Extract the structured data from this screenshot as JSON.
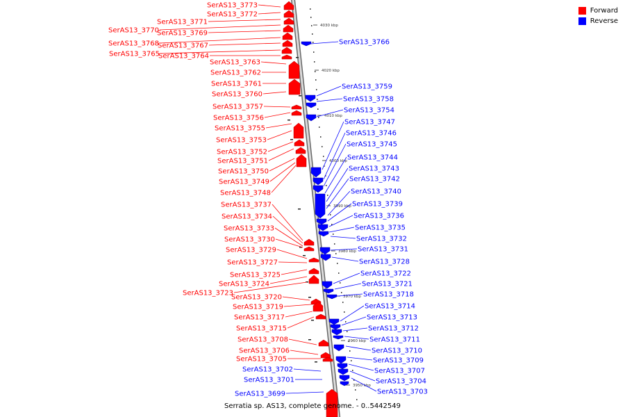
{
  "colors": {
    "forward": "#ff0000",
    "reverse": "#0000ff",
    "axis": "#9a9a9a"
  },
  "legend": {
    "forward_label": "Forward",
    "reverse_label": "Reverse"
  },
  "caption": "Serratia sp. AS13, complete genome. - 0..5442549",
  "ticks": [
    "4030 kbp",
    "4020 kbp",
    "4010 kbp",
    "4000 kbp",
    "3990 kbp",
    "3980 kbp",
    "3970 kbp",
    "3960 kbp",
    "3950 kbp"
  ],
  "genes": [
    {
      "name": "SerAS13_3773",
      "strand": "forward"
    },
    {
      "name": "SerAS13_3772",
      "strand": "forward"
    },
    {
      "name": "SerAS13_3771",
      "strand": "forward"
    },
    {
      "name": "SerAS13_3770",
      "strand": "forward"
    },
    {
      "name": "SerAS13_3769",
      "strand": "forward"
    },
    {
      "name": "SerAS13_3768",
      "strand": "forward"
    },
    {
      "name": "SerAS13_3767",
      "strand": "forward"
    },
    {
      "name": "SerAS13_3765",
      "strand": "forward"
    },
    {
      "name": "SerAS13_3764",
      "strand": "forward"
    },
    {
      "name": "SerAS13_3763",
      "strand": "forward"
    },
    {
      "name": "SerAS13_3762",
      "strand": "forward"
    },
    {
      "name": "SerAS13_3761",
      "strand": "forward"
    },
    {
      "name": "SerAS13_3760",
      "strand": "forward"
    },
    {
      "name": "SerAS13_3757",
      "strand": "forward"
    },
    {
      "name": "SerAS13_3756",
      "strand": "forward"
    },
    {
      "name": "SerAS13_3755",
      "strand": "forward"
    },
    {
      "name": "SerAS13_3753",
      "strand": "forward"
    },
    {
      "name": "SerAS13_3752",
      "strand": "forward"
    },
    {
      "name": "SerAS13_3751",
      "strand": "forward"
    },
    {
      "name": "SerAS13_3750",
      "strand": "forward"
    },
    {
      "name": "SerAS13_3749",
      "strand": "forward"
    },
    {
      "name": "SerAS13_3748",
      "strand": "forward"
    },
    {
      "name": "SerAS13_3737",
      "strand": "forward"
    },
    {
      "name": "SerAS13_3734",
      "strand": "forward"
    },
    {
      "name": "SerAS13_3733",
      "strand": "forward"
    },
    {
      "name": "SerAS13_3730",
      "strand": "forward"
    },
    {
      "name": "SerAS13_3729",
      "strand": "forward"
    },
    {
      "name": "SerAS13_3727",
      "strand": "forward"
    },
    {
      "name": "SerAS13_3725",
      "strand": "forward"
    },
    {
      "name": "SerAS13_3724",
      "strand": "forward"
    },
    {
      "name": "SerAS13_3723",
      "strand": "forward"
    },
    {
      "name": "SerAS13_3720",
      "strand": "forward"
    },
    {
      "name": "SerAS13_3719",
      "strand": "forward"
    },
    {
      "name": "SerAS13_3717",
      "strand": "forward"
    },
    {
      "name": "SerAS13_3715",
      "strand": "forward"
    },
    {
      "name": "SerAS13_3708",
      "strand": "forward"
    },
    {
      "name": "SerAS13_3706",
      "strand": "forward"
    },
    {
      "name": "SerAS13_3705",
      "strand": "forward"
    },
    {
      "name": "SerAS13_3702",
      "strand": "reverse"
    },
    {
      "name": "SerAS13_3701",
      "strand": "reverse"
    },
    {
      "name": "SerAS13_3699",
      "strand": "reverse"
    },
    {
      "name": "SerAS13_3766",
      "strand": "reverse"
    },
    {
      "name": "SerAS13_3759",
      "strand": "reverse"
    },
    {
      "name": "SerAS13_3758",
      "strand": "reverse"
    },
    {
      "name": "SerAS13_3754",
      "strand": "reverse"
    },
    {
      "name": "SerAS13_3747",
      "strand": "reverse"
    },
    {
      "name": "SerAS13_3746",
      "strand": "reverse"
    },
    {
      "name": "SerAS13_3745",
      "strand": "reverse"
    },
    {
      "name": "SerAS13_3744",
      "strand": "reverse"
    },
    {
      "name": "SerAS13_3743",
      "strand": "reverse"
    },
    {
      "name": "SerAS13_3742",
      "strand": "reverse"
    },
    {
      "name": "SerAS13_3740",
      "strand": "reverse"
    },
    {
      "name": "SerAS13_3739",
      "strand": "reverse"
    },
    {
      "name": "SerAS13_3736",
      "strand": "reverse"
    },
    {
      "name": "SerAS13_3735",
      "strand": "reverse"
    },
    {
      "name": "SerAS13_3732",
      "strand": "reverse"
    },
    {
      "name": "SerAS13_3731",
      "strand": "reverse"
    },
    {
      "name": "SerAS13_3728",
      "strand": "reverse"
    },
    {
      "name": "SerAS13_3722",
      "strand": "reverse"
    },
    {
      "name": "SerAS13_3721",
      "strand": "reverse"
    },
    {
      "name": "SerAS13_3718",
      "strand": "reverse"
    },
    {
      "name": "SerAS13_3714",
      "strand": "reverse"
    },
    {
      "name": "SerAS13_3713",
      "strand": "reverse"
    },
    {
      "name": "SerAS13_3712",
      "strand": "reverse"
    },
    {
      "name": "SerAS13_3711",
      "strand": "reverse"
    },
    {
      "name": "SerAS13_3710",
      "strand": "reverse"
    },
    {
      "name": "SerAS13_3709",
      "strand": "reverse"
    },
    {
      "name": "SerAS13_3707",
      "strand": "reverse"
    },
    {
      "name": "SerAS13_3704",
      "strand": "reverse"
    },
    {
      "name": "SerAS13_3703",
      "strand": "reverse"
    }
  ]
}
